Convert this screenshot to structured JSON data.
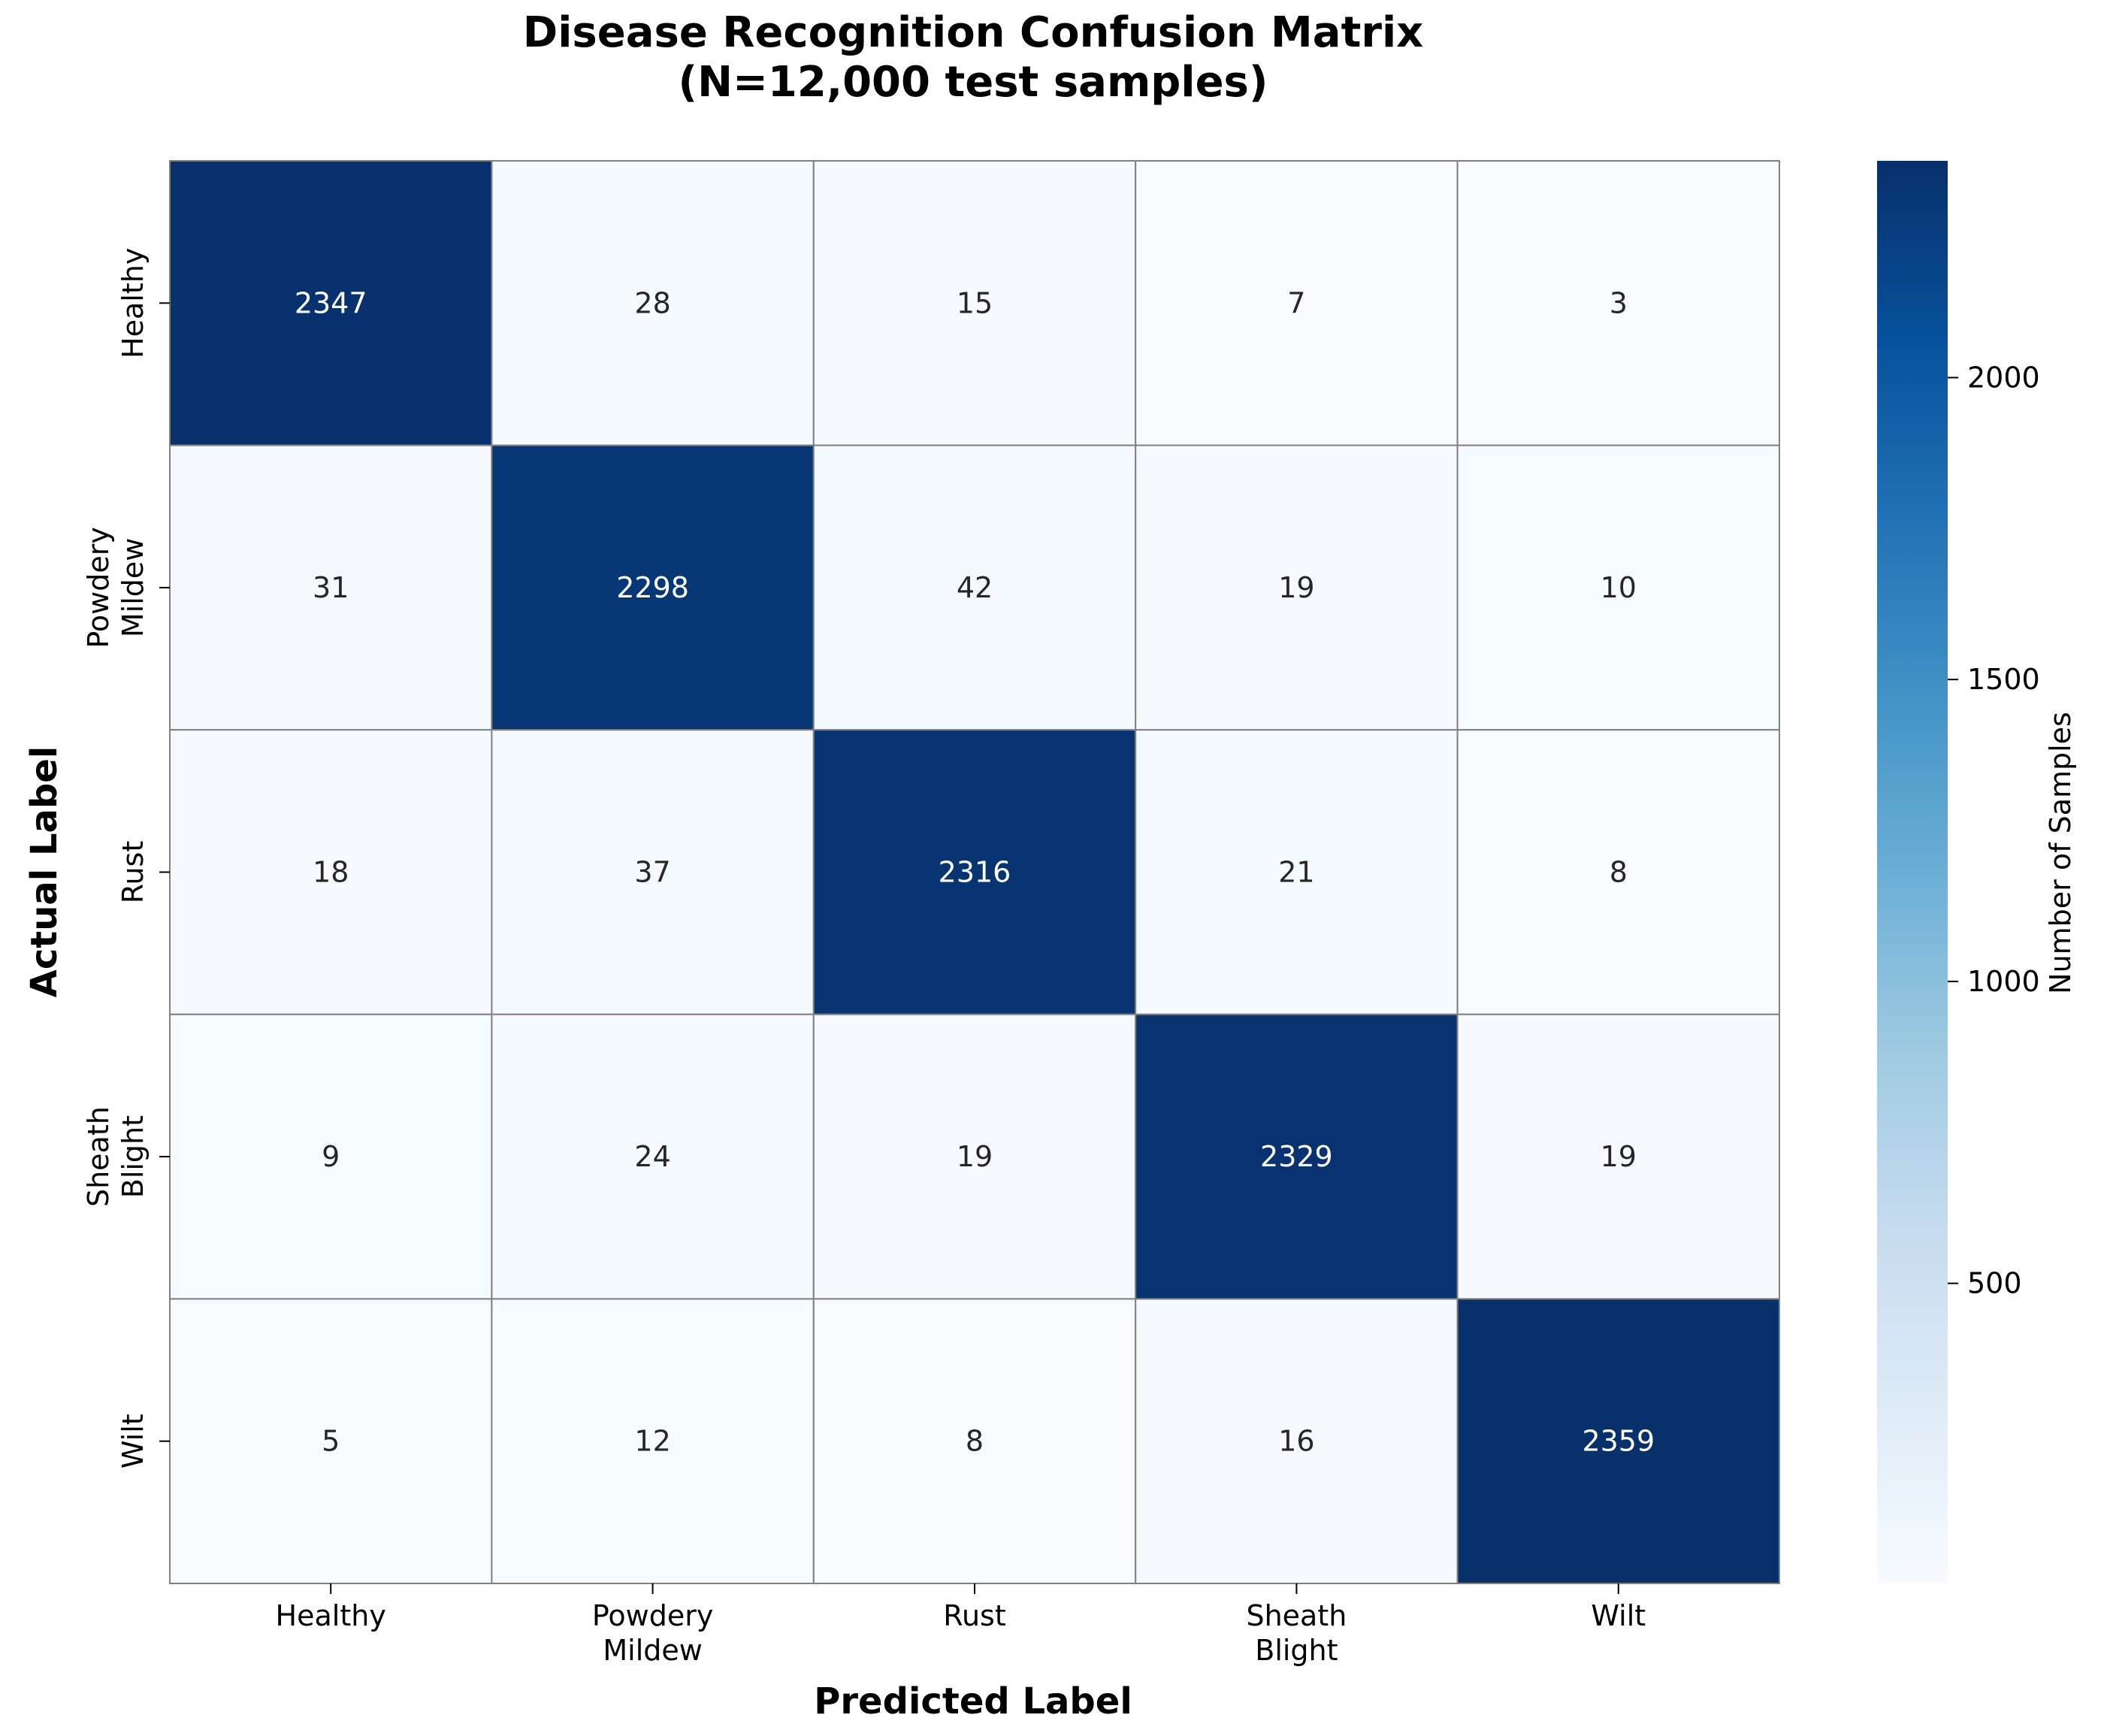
{
  "chart_data": {
    "type": "heatmap",
    "title_lines": [
      "Disease Recognition Confusion Matrix",
      "(N=12,000 test samples)"
    ],
    "xlabel": "Predicted Label",
    "ylabel": "Actual Label",
    "x_tick_labels": [
      [
        "Healthy"
      ],
      [
        "Powdery",
        "Mildew"
      ],
      [
        "Rust"
      ],
      [
        "Sheath",
        "Blight"
      ],
      [
        "Wilt"
      ]
    ],
    "y_tick_labels": [
      [
        "Healthy"
      ],
      [
        "Powdery",
        "Mildew"
      ],
      [
        "Rust"
      ],
      [
        "Sheath",
        "Blight"
      ],
      [
        "Wilt"
      ]
    ],
    "matrix": [
      [
        2347,
        28,
        15,
        7,
        3
      ],
      [
        31,
        2298,
        42,
        19,
        10
      ],
      [
        18,
        37,
        2316,
        21,
        8
      ],
      [
        9,
        24,
        19,
        2329,
        19
      ],
      [
        5,
        12,
        8,
        16,
        2359
      ]
    ],
    "colorbar": {
      "label": "Number of Samples",
      "ticks": [
        500,
        1000,
        1500,
        2000
      ],
      "range": [
        3,
        2359
      ],
      "colormap": "Blues",
      "low_color": "#f7fbff",
      "high_color": "#08306b"
    },
    "grid": true
  }
}
